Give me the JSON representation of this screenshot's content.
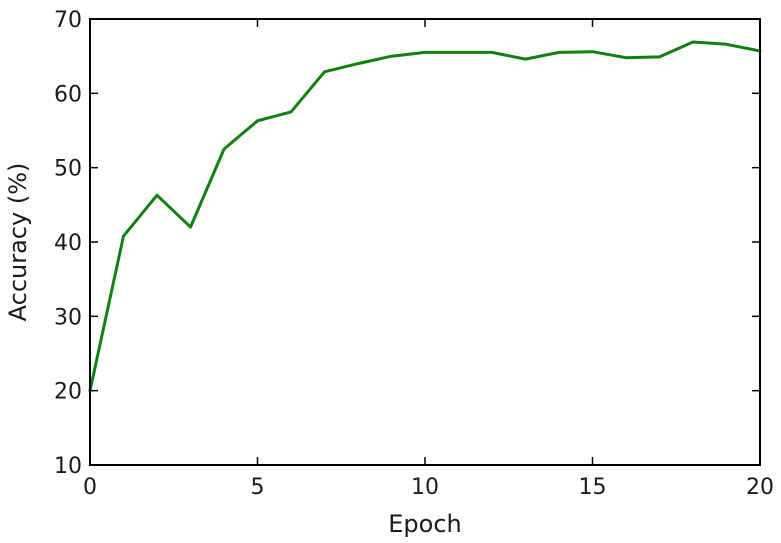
{
  "chart_data": {
    "type": "line",
    "title": "",
    "xlabel": "Epoch",
    "ylabel": "Accuracy (%)",
    "xlim": [
      0,
      20
    ],
    "ylim": [
      10,
      70
    ],
    "xticks": [
      0,
      5,
      10,
      15,
      20
    ],
    "yticks": [
      10,
      20,
      30,
      40,
      50,
      60,
      70
    ],
    "grid": false,
    "series": [
      {
        "color": "#118011",
        "x": [
          0,
          1,
          2,
          3,
          4,
          5,
          6,
          7,
          8,
          9,
          10,
          11,
          12,
          13,
          14,
          15,
          16,
          17,
          18,
          19,
          20
        ],
        "y": [
          20.0,
          40.8,
          46.3,
          42.0,
          52.5,
          56.3,
          57.5,
          62.9,
          64.0,
          65.0,
          65.5,
          65.5,
          65.5,
          64.6,
          65.5,
          65.6,
          64.8,
          64.9,
          66.9,
          66.6,
          65.7
        ]
      }
    ]
  }
}
